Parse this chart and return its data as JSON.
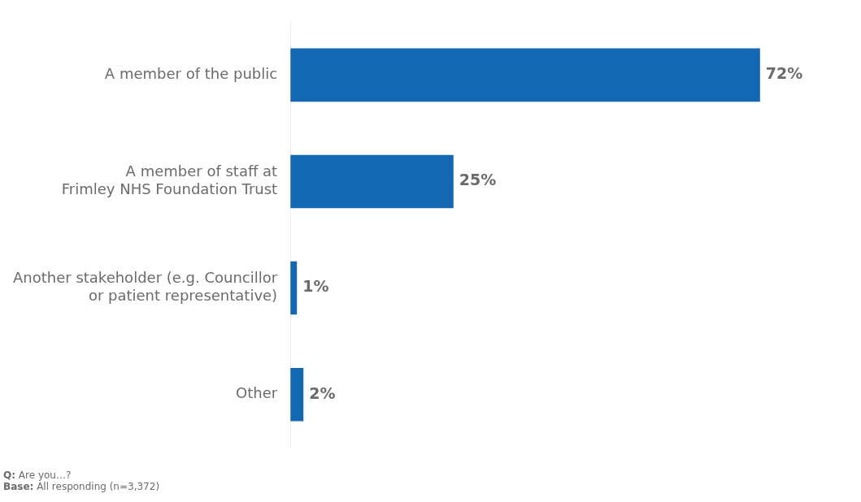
{
  "chart_data": {
    "type": "bar",
    "orientation": "horizontal",
    "categories": [
      "A member of the public",
      "A member of staff at\nFrimley NHS Foundation Trust",
      "Another stakeholder (e.g. Councillor\nor patient representative)",
      "Other"
    ],
    "values": [
      72,
      25,
      1,
      2
    ],
    "color": "#1467b3",
    "value_labels": [
      "72%",
      "25%",
      "1%",
      "2%"
    ],
    "tick_labels": "y",
    "grid": false,
    "legend": false,
    "annotations": [
      "Q: Are  you…?",
      "Base: All responding (n=3,372)"
    ]
  }
}
